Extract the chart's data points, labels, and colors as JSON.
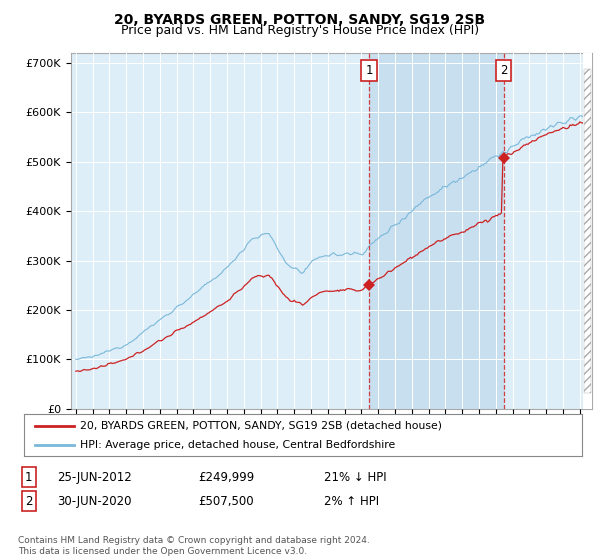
{
  "title": "20, BYARDS GREEN, POTTON, SANDY, SG19 2SB",
  "subtitle": "Price paid vs. HM Land Registry's House Price Index (HPI)",
  "ylim": [
    0,
    720000
  ],
  "yticks": [
    0,
    100000,
    200000,
    300000,
    400000,
    500000,
    600000,
    700000
  ],
  "ytick_labels": [
    "£0",
    "£100K",
    "£200K",
    "£300K",
    "£400K",
    "£500K",
    "£600K",
    "£700K"
  ],
  "background_color": "#ffffff",
  "plot_bg_color": "#ddeef8",
  "shade_color": "#c8dff0",
  "grid_color": "#ffffff",
  "hpi_color": "#7ab8d9",
  "price_color": "#cc2222",
  "sale1_year": 2012.458,
  "sale1_price": 249999,
  "sale2_year": 2020.458,
  "sale2_price": 507500,
  "xmin": 1994.7,
  "xmax": 2025.7,
  "legend_label1": "20, BYARDS GREEN, POTTON, SANDY, SG19 2SB (detached house)",
  "legend_label2": "HPI: Average price, detached house, Central Bedfordshire",
  "note1_label": "1",
  "note1_date": "25-JUN-2012",
  "note1_price": "£249,999",
  "note1_pct": "21% ↓ HPI",
  "note2_label": "2",
  "note2_date": "30-JUN-2020",
  "note2_price": "£507,500",
  "note2_pct": "2% ↑ HPI",
  "footer": "Contains HM Land Registry data © Crown copyright and database right 2024.\nThis data is licensed under the Open Government Licence v3.0.",
  "title_fontsize": 10,
  "subtitle_fontsize": 9
}
